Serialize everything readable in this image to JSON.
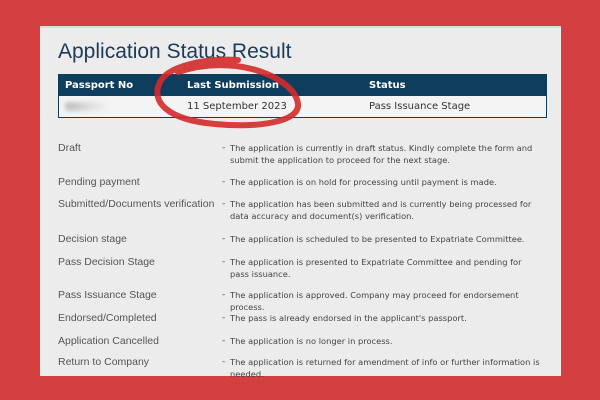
{
  "title": "Application Status Result",
  "table": {
    "headers": [
      "Passport No",
      "Last Submission",
      "Status"
    ],
    "row": {
      "passport_no": "",
      "last_submission": "11 September 2023",
      "status": "Pass Issuance Stage"
    }
  },
  "legend": [
    {
      "label": "Draft",
      "desc": "The application is currently in draft status. Kindly complete the form and submit the application to proceed for the next stage."
    },
    {
      "label": "Pending payment",
      "desc": "The application is on hold for processing until payment is made."
    },
    {
      "label": "Submitted/Documents verification",
      "desc": "The application has been submitted and is currently being processed for data accuracy and document(s) verification."
    },
    {
      "label": "Decision stage",
      "desc": "The application is scheduled to be presented to Expatriate Committee."
    },
    {
      "label": "Pass Decision Stage",
      "desc": "The application is presented to Expatriate Committee and pending for pass issuance."
    },
    {
      "label": "Pass Issuance Stage",
      "desc": "The application is approved. Company may proceed for endorsement process."
    },
    {
      "label": "Endorsed/Completed",
      "desc": "The pass is already endorsed in the applicant's passport."
    },
    {
      "label": "Application Cancelled",
      "desc": "The application is no longer in process."
    },
    {
      "label": "Return to Company",
      "desc": "The application is returned for amendment of info or further information is needed."
    }
  ],
  "dash": "-",
  "colors": {
    "background": "#d43f41",
    "header": "#0e3d5e",
    "annotation": "#d42a2a"
  }
}
